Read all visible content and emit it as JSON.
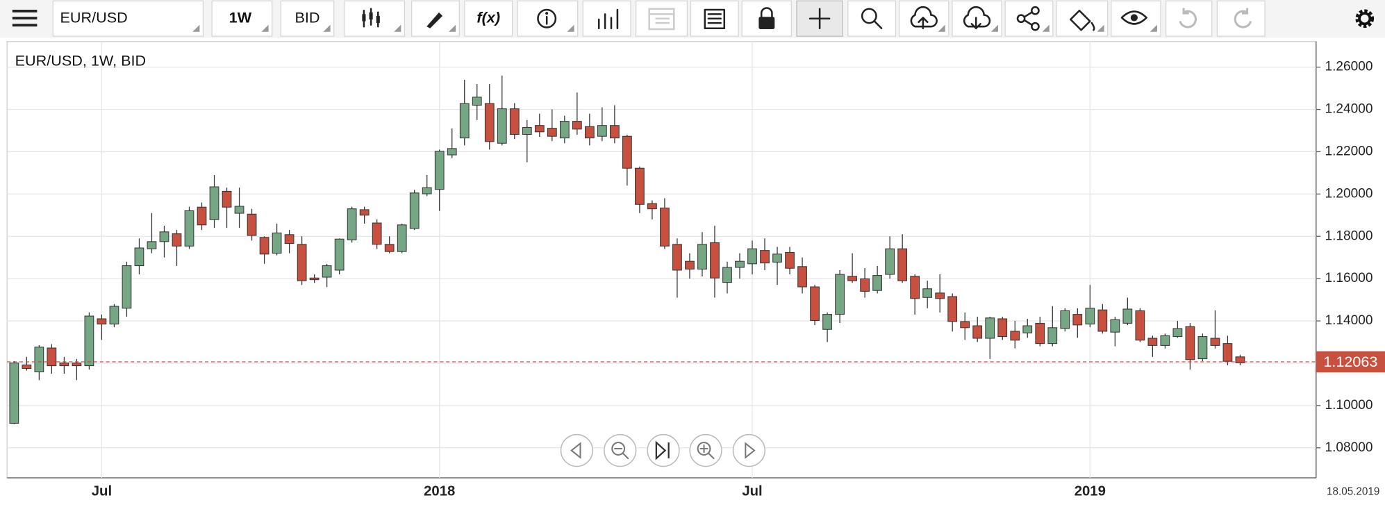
{
  "toolbar": {
    "symbol": "EUR/USD",
    "period": "1W",
    "price_type": "BID",
    "function_button": "f(x)"
  },
  "chart_data": {
    "type": "candlestick",
    "title": "EUR/USD, 1W, BID",
    "categories": [
      null,
      null,
      null,
      null,
      null,
      null,
      null,
      "Jul",
      null,
      null,
      null,
      null,
      null,
      null,
      null,
      null,
      null,
      null,
      null,
      null,
      null,
      null,
      null,
      null,
      null,
      null,
      null,
      null,
      null,
      null,
      null,
      null,
      null,
      null,
      "2018",
      null,
      null,
      null,
      null,
      null,
      null,
      null,
      null,
      null,
      null,
      null,
      null,
      null,
      null,
      null,
      null,
      null,
      null,
      null,
      null,
      null,
      null,
      null,
      null,
      "Jul",
      null,
      null,
      null,
      null,
      null,
      null,
      null,
      null,
      null,
      null,
      null,
      null,
      null,
      null,
      null,
      null,
      null,
      null,
      null,
      null,
      null,
      null,
      null,
      null,
      null,
      null,
      "2019",
      null,
      null,
      null,
      null,
      null,
      null,
      null,
      null,
      null,
      null,
      null,
      null
    ],
    "open": [
      1.0916,
      1.1192,
      1.1159,
      1.1272,
      1.1201,
      1.1201,
      1.1188,
      1.141,
      1.1385,
      1.146,
      1.1661,
      1.1741,
      1.1775,
      1.1812,
      1.1754,
      1.1938,
      1.1879,
      1.2013,
      1.1909,
      1.1905,
      1.1795,
      1.172,
      1.1808,
      1.1762,
      1.1603,
      1.1607,
      1.164,
      1.1783,
      1.1926,
      1.1863,
      1.1762,
      1.1728,
      1.1837,
      1.2001,
      1.2022,
      1.2185,
      1.2265,
      1.242,
      1.2428,
      1.224,
      1.2403,
      1.2282,
      1.2324,
      1.2311,
      1.2265,
      1.2344,
      1.2319,
      1.2273,
      1.2324,
      1.2273,
      1.2122,
      1.1955,
      1.1934,
      1.1762,
      1.1682,
      1.1645,
      1.177,
      1.1582,
      1.1653,
      1.167,
      1.1733,
      1.1678,
      1.1724,
      1.1657,
      1.1561,
      1.136,
      1.1431,
      1.1611,
      1.1599,
      1.1544,
      1.162,
      1.1741,
      1.1611,
      1.1511,
      1.1532,
      1.1515,
      1.1397,
      1.1377,
      1.1318,
      1.141,
      1.1351,
      1.1343,
      1.1389,
      1.1293,
      1.1364,
      1.1431,
      1.1385,
      1.1452,
      1.1347,
      1.1389,
      1.1448,
      1.1318,
      1.1284,
      1.1326,
      1.1373,
      1.1221,
      1.1318,
      1.1293,
      1.123
    ],
    "high": [
      1.121,
      1.123,
      1.1285,
      1.129,
      1.123,
      1.122,
      1.144,
      1.143,
      1.148,
      1.168,
      1.179,
      1.191,
      1.185,
      1.183,
      1.194,
      1.196,
      1.209,
      1.203,
      1.203,
      1.193,
      1.18,
      1.186,
      1.183,
      1.18,
      1.162,
      1.167,
      1.179,
      1.194,
      1.194,
      1.188,
      1.18,
      1.186,
      1.202,
      1.209,
      1.221,
      1.231,
      1.254,
      1.252,
      1.252,
      1.256,
      1.243,
      1.235,
      1.238,
      1.24,
      1.237,
      1.248,
      1.238,
      1.241,
      1.242,
      1.228,
      1.213,
      1.197,
      1.198,
      1.179,
      1.172,
      1.182,
      1.185,
      1.168,
      1.172,
      1.178,
      1.179,
      1.175,
      1.175,
      1.17,
      1.157,
      1.144,
      1.164,
      1.172,
      1.165,
      1.166,
      1.18,
      1.181,
      1.162,
      1.159,
      1.162,
      1.153,
      1.144,
      1.142,
      1.142,
      1.142,
      1.14,
      1.141,
      1.142,
      1.147,
      1.146,
      1.146,
      1.157,
      1.148,
      1.142,
      1.151,
      1.146,
      1.133,
      1.134,
      1.14,
      1.139,
      1.134,
      1.145,
      1.133,
      1.124
    ],
    "low": [
      1.0912,
      1.1165,
      1.112,
      1.115,
      1.115,
      1.112,
      1.117,
      1.131,
      1.137,
      1.142,
      1.162,
      1.172,
      1.17,
      1.166,
      1.174,
      1.183,
      1.184,
      1.184,
      1.184,
      1.178,
      1.167,
      1.171,
      1.172,
      1.157,
      1.158,
      1.156,
      1.162,
      1.177,
      1.186,
      1.174,
      1.172,
      1.172,
      1.183,
      1.199,
      1.192,
      1.217,
      1.223,
      1.235,
      1.221,
      1.223,
      1.226,
      1.215,
      1.227,
      1.225,
      1.224,
      1.228,
      1.223,
      1.225,
      1.224,
      1.204,
      1.191,
      1.188,
      1.174,
      1.151,
      1.16,
      1.161,
      1.151,
      1.153,
      1.16,
      1.162,
      1.164,
      1.157,
      1.162,
      1.153,
      1.138,
      1.13,
      1.139,
      1.158,
      1.151,
      1.153,
      1.16,
      1.158,
      1.143,
      1.146,
      1.144,
      1.135,
      1.131,
      1.13,
      1.122,
      1.131,
      1.127,
      1.132,
      1.128,
      1.128,
      1.135,
      1.132,
      1.137,
      1.134,
      1.128,
      1.138,
      1.13,
      1.123,
      1.127,
      1.132,
      1.117,
      1.121,
      1.127,
      1.119,
      1.119
    ],
    "close": [
      1.1201,
      1.1175,
      1.1276,
      1.1188,
      1.1188,
      1.1188,
      1.1423,
      1.1385,
      1.1469,
      1.1661,
      1.1745,
      1.1775,
      1.1821,
      1.1754,
      1.1921,
      1.1854,
      1.2034,
      1.1938,
      1.1942,
      1.1804,
      1.1716,
      1.1816,
      1.1766,
      1.159,
      1.1595,
      1.1661,
      1.1787,
      1.193,
      1.19,
      1.1762,
      1.1728,
      1.1854,
      1.2005,
      1.203,
      1.2202,
      1.2215,
      1.2428,
      1.2458,
      1.2248,
      1.2403,
      1.2282,
      1.2315,
      1.2294,
      1.2273,
      1.2344,
      1.2307,
      1.2265,
      1.2324,
      1.2265,
      1.2122,
      1.1951,
      1.193,
      1.1754,
      1.164,
      1.1645,
      1.1762,
      1.1603,
      1.1653,
      1.1682,
      1.1741,
      1.1674,
      1.1716,
      1.1649,
      1.1561,
      1.1402,
      1.1431,
      1.162,
      1.159,
      1.154,
      1.1615,
      1.1741,
      1.159,
      1.1506,
      1.1552,
      1.1506,
      1.1397,
      1.1368,
      1.1318,
      1.1414,
      1.1326,
      1.1309,
      1.1377,
      1.1293,
      1.1368,
      1.1448,
      1.1381,
      1.146,
      1.1351,
      1.1406,
      1.1456,
      1.1309,
      1.1284,
      1.133,
      1.1364,
      1.1217,
      1.1326,
      1.1284,
      1.1209,
      1.1202
    ],
    "up_color": "#75a784",
    "down_color": "#c8503e",
    "ylim": [
      1.0658,
      1.2721
    ],
    "yticks": [
      {
        "value": 1.08,
        "label": "1.08000"
      },
      {
        "value": 1.1,
        "label": "1.10000"
      },
      {
        "value": 1.12,
        "label": "1.12000"
      },
      {
        "value": 1.14,
        "label": "1.14000"
      },
      {
        "value": 1.16,
        "label": "1.16000"
      },
      {
        "value": 1.18,
        "label": "1.18000"
      },
      {
        "value": 1.2,
        "label": "1.20000"
      },
      {
        "value": 1.22,
        "label": "1.22000"
      },
      {
        "value": 1.24,
        "label": "1.24000"
      },
      {
        "value": 1.26,
        "label": "1.26000"
      }
    ],
    "grid": true,
    "last_price": 1.12063,
    "last_price_color": "#c8503e",
    "date_label": "18.05.2019"
  }
}
